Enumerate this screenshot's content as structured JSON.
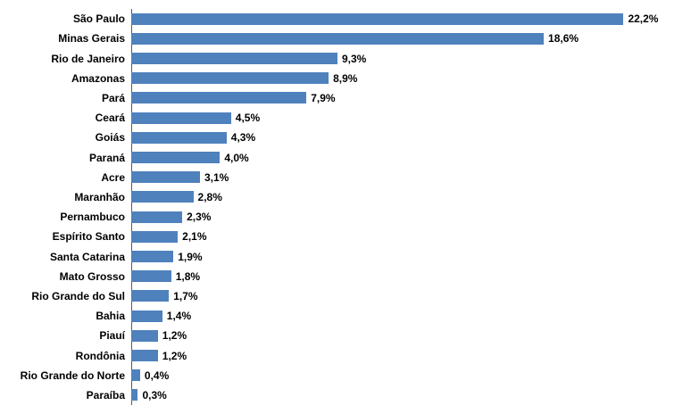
{
  "chart_data": {
    "type": "bar",
    "orientation": "horizontal",
    "title": "",
    "xlabel": "",
    "ylabel": "",
    "grid": false,
    "legend": false,
    "xlim": [
      0,
      25
    ],
    "bar_color": "#4F81BD",
    "axis_color": "#595959",
    "categories": [
      "São Paulo",
      "Minas Gerais",
      "Rio de Janeiro",
      "Amazonas",
      "Pará",
      "Ceará",
      "Goiás",
      "Paraná",
      "Acre",
      "Maranhão",
      "Pernambuco",
      "Espírito Santo",
      "Santa Catarina",
      "Mato Grosso",
      "Rio Grande do Sul",
      "Bahia",
      "Piauí",
      "Rondônia",
      "Rio Grande do Norte",
      "Paraíba"
    ],
    "values": [
      22.2,
      18.6,
      9.3,
      8.9,
      7.9,
      4.5,
      4.3,
      4.0,
      3.1,
      2.8,
      2.3,
      2.1,
      1.9,
      1.8,
      1.7,
      1.4,
      1.2,
      1.2,
      0.4,
      0.3
    ],
    "labels": [
      "22,2%",
      "18,6%",
      "9,3%",
      "8,9%",
      "7,9%",
      "4,5%",
      "4,3%",
      "4,0%",
      "3,1%",
      "2,8%",
      "2,3%",
      "2,1%",
      "1,9%",
      "1,8%",
      "1,7%",
      "1,4%",
      "1,2%",
      "1,2%",
      "0,4%",
      "0,3%"
    ]
  }
}
